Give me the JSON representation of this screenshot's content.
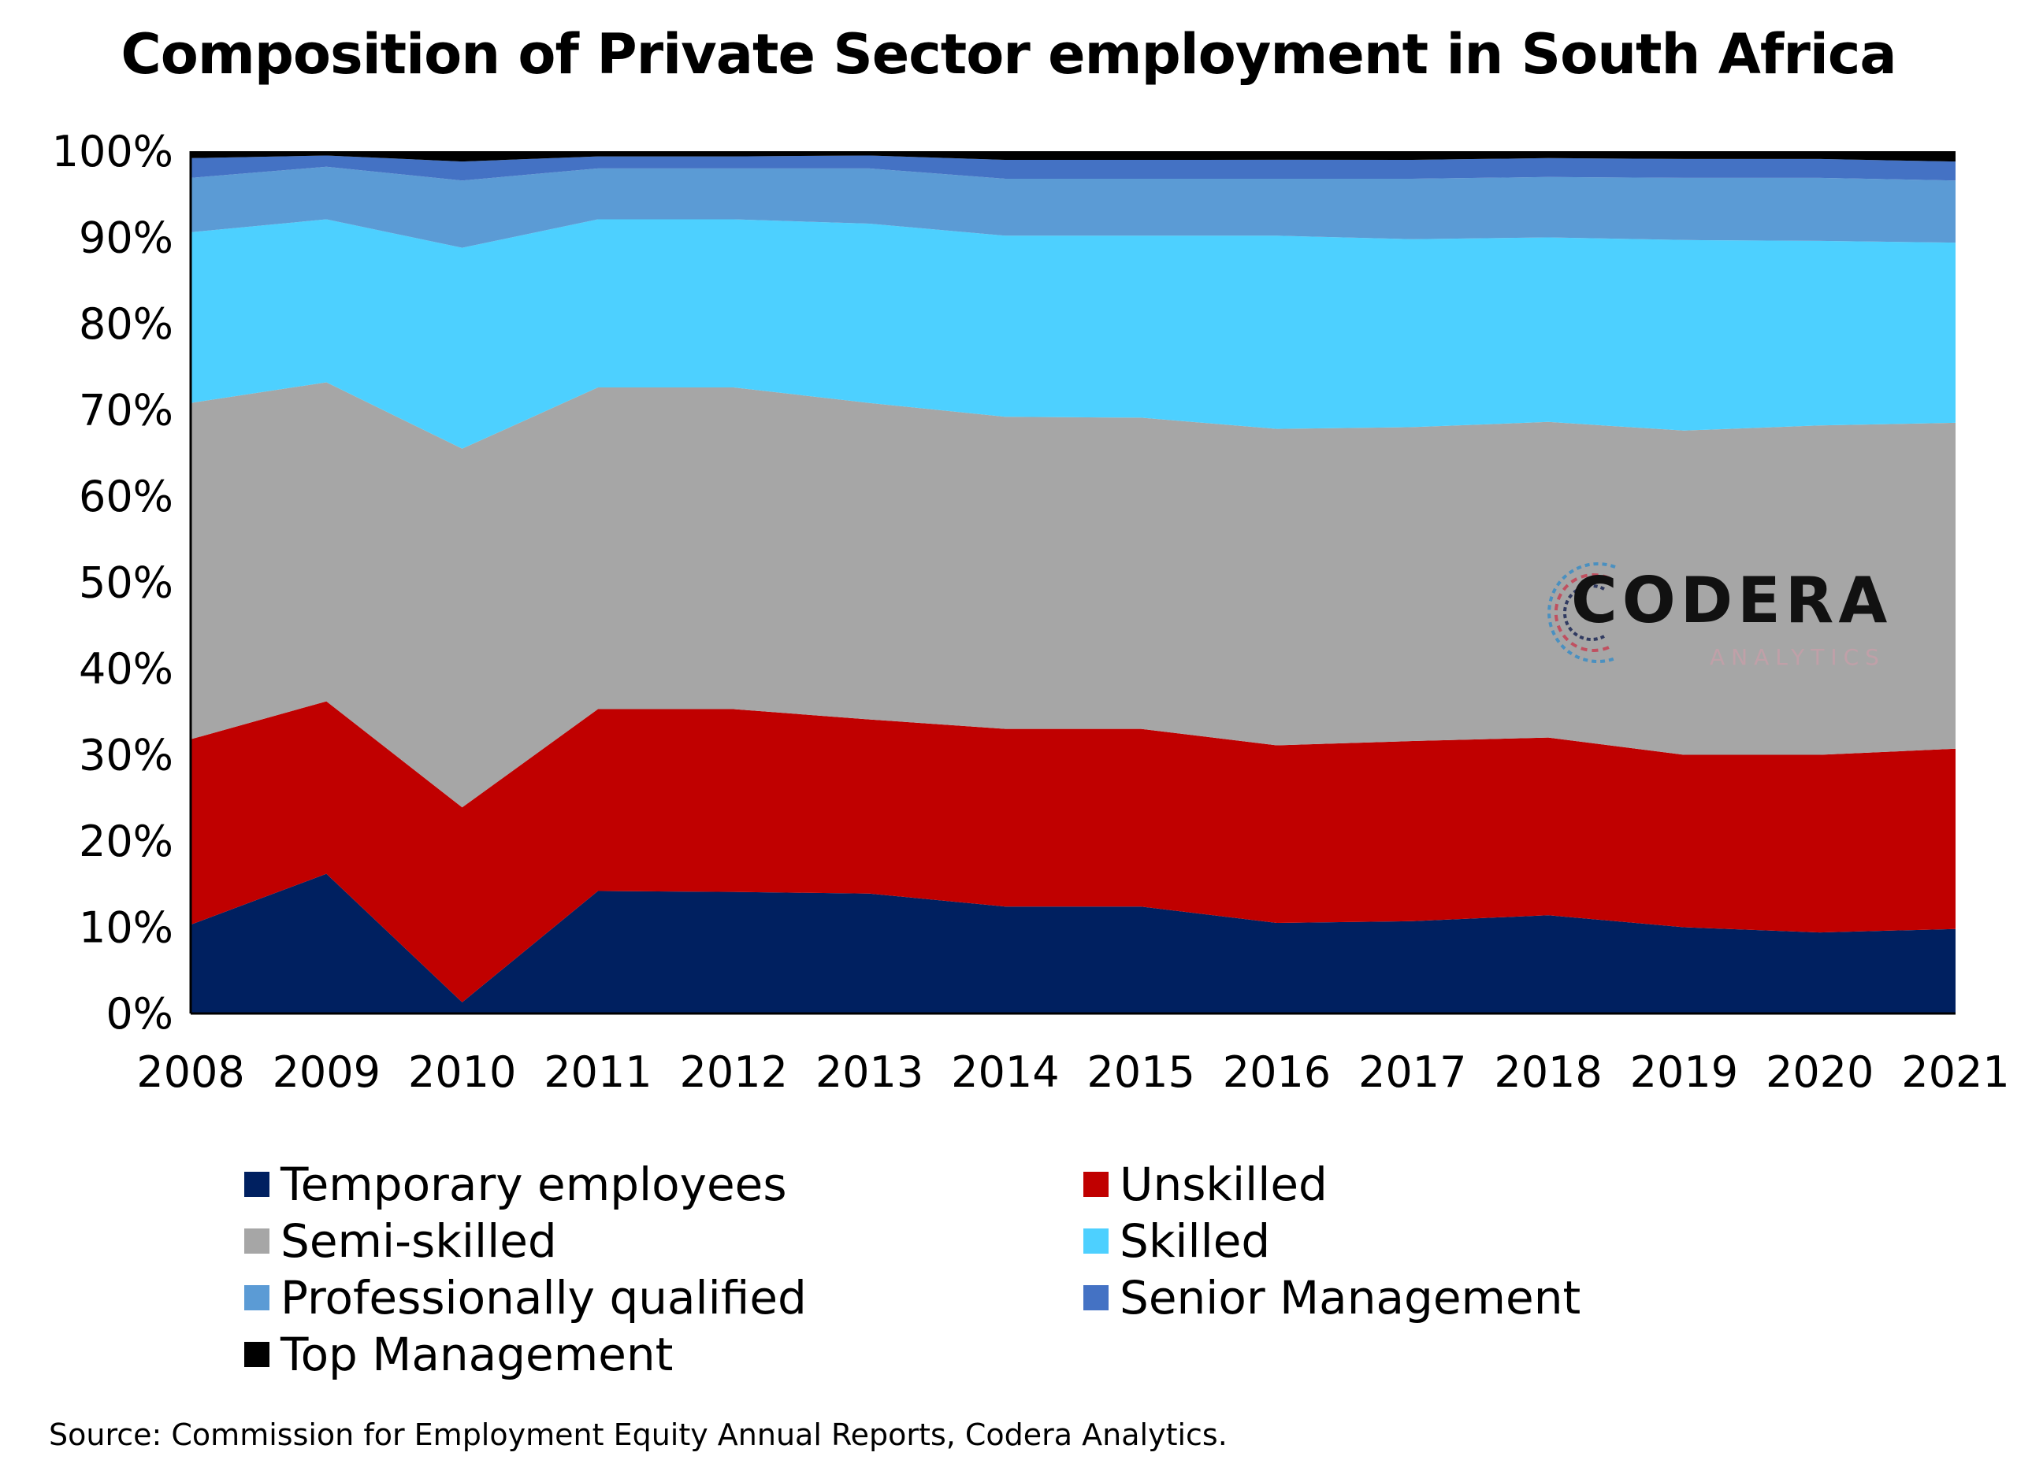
{
  "chart_data": {
    "type": "area",
    "stacked": true,
    "title": "Composition of Private Sector employment in South Africa",
    "xlabel": "",
    "ylabel": "",
    "ylim": [
      0,
      100
    ],
    "yticks": [
      "0%",
      "10%",
      "20%",
      "30%",
      "40%",
      "50%",
      "60%",
      "70%",
      "80%",
      "90%",
      "100%"
    ],
    "categories": [
      "2008",
      "2009",
      "2010",
      "2011",
      "2012",
      "2013",
      "2014",
      "2015",
      "2016",
      "2017",
      "2018",
      "2019",
      "2020",
      "2021"
    ],
    "series": [
      {
        "name": "Temporary employees",
        "color": "#002060",
        "values": [
          10.3,
          16.2,
          1.3,
          14.2,
          14.1,
          13.9,
          12.4,
          12.4,
          10.5,
          10.7,
          11.4,
          10.0,
          9.4,
          9.8
        ]
      },
      {
        "name": "Unskilled",
        "color": "#C00000",
        "values": [
          21.5,
          20.0,
          22.6,
          21.1,
          21.2,
          20.2,
          20.6,
          20.6,
          20.6,
          20.9,
          20.6,
          20.0,
          20.6,
          20.9
        ]
      },
      {
        "name": "Semi-skilled",
        "color": "#A6A6A6",
        "values": [
          39.0,
          37.0,
          41.6,
          37.3,
          37.3,
          36.7,
          36.2,
          36.1,
          36.7,
          36.4,
          36.6,
          37.6,
          38.2,
          37.8
        ]
      },
      {
        "name": "Skilled",
        "color": "#4DD0FF",
        "values": [
          19.8,
          18.9,
          23.3,
          19.5,
          19.5,
          20.8,
          21.0,
          21.1,
          22.4,
          21.8,
          21.4,
          22.1,
          21.4,
          20.9
        ]
      },
      {
        "name": "Professionally qualified",
        "color": "#5B9BD5",
        "values": [
          6.3,
          6.1,
          7.8,
          5.9,
          5.9,
          6.4,
          6.6,
          6.6,
          6.6,
          7.0,
          7.0,
          7.2,
          7.3,
          7.2
        ]
      },
      {
        "name": "Senior Management",
        "color": "#4472C4",
        "values": [
          2.3,
          1.3,
          2.2,
          1.4,
          1.4,
          1.5,
          2.2,
          2.2,
          2.2,
          2.2,
          2.2,
          2.2,
          2.2,
          2.2
        ]
      },
      {
        "name": "Top Management",
        "color": "#000000",
        "values": [
          0.8,
          0.5,
          1.2,
          0.6,
          0.6,
          0.5,
          1.0,
          1.0,
          1.0,
          1.0,
          0.8,
          0.9,
          0.9,
          1.2
        ]
      }
    ],
    "legend": {
      "placement": "bottom",
      "columns": 2
    },
    "grid": false
  },
  "source": "Source: Commission for Employment Equity Annual Reports, Codera Analytics.",
  "logo": {
    "name": "CODERA",
    "subtitle": "ANALYTICS"
  }
}
